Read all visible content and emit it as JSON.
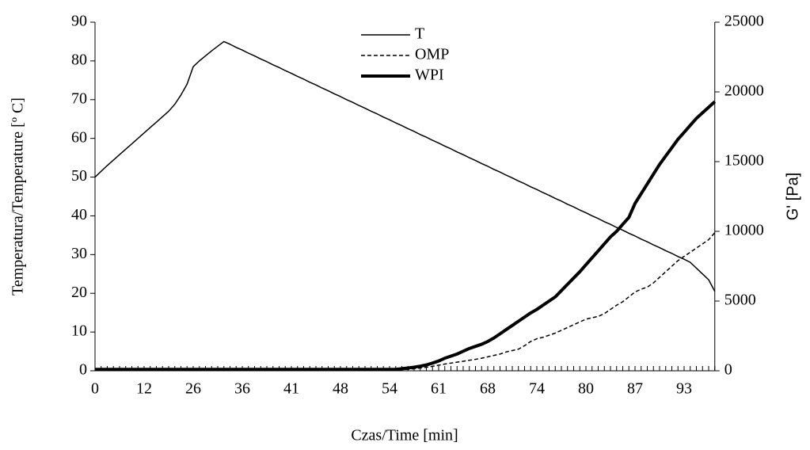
{
  "chart_data": {
    "type": "line",
    "x_label": "Czas/Time [min]",
    "y_label": "Temperatura/Temperature [º C]",
    "y2_label": "G' [Pa]",
    "categories": [
      "0",
      null,
      null,
      null,
      null,
      null,
      null,
      null,
      "12",
      null,
      null,
      null,
      null,
      null,
      null,
      null,
      "26",
      null,
      null,
      null,
      null,
      null,
      null,
      null,
      "36",
      null,
      null,
      null,
      null,
      null,
      null,
      null,
      "41",
      null,
      null,
      null,
      null,
      null,
      null,
      null,
      "48",
      null,
      null,
      null,
      null,
      null,
      null,
      null,
      "54",
      null,
      null,
      null,
      null,
      null,
      null,
      null,
      "61",
      null,
      null,
      null,
      null,
      null,
      null,
      null,
      "68",
      null,
      null,
      null,
      null,
      null,
      null,
      null,
      "74",
      null,
      null,
      null,
      null,
      null,
      null,
      null,
      "80",
      null,
      null,
      null,
      null,
      null,
      null,
      null,
      "87",
      null,
      null,
      null,
      null,
      null,
      null,
      null,
      "93",
      null,
      null,
      null,
      null,
      null
    ],
    "ylim": [
      0,
      90
    ],
    "yticks": [
      0,
      10,
      20,
      30,
      40,
      50,
      60,
      70,
      80,
      90
    ],
    "y2lim": [
      0,
      25000
    ],
    "y2ticks": [
      0,
      5000,
      10000,
      15000,
      20000,
      25000
    ],
    "legend": "top",
    "series": [
      {
        "name": "T",
        "color": "#000000",
        "width": 1.5,
        "dash": "solid",
        "values": [
          50,
          51.5,
          53,
          54.4,
          55.8,
          57.2,
          58.6,
          60,
          61.4,
          62.8,
          64.2,
          65.6,
          67,
          68.8,
          71.2,
          74,
          78.5,
          80,
          81.3,
          82.6,
          83.8,
          85,
          84.3,
          83.5,
          82.8,
          82.0,
          81.3,
          80.5,
          79.8,
          79.0,
          78.3,
          77.5,
          76.8,
          76.0,
          75.3,
          74.5,
          73.8,
          73.0,
          72.3,
          71.5,
          70.8,
          70.0,
          69.3,
          68.5,
          67.8,
          67.0,
          66.3,
          65.5,
          64.8,
          64.0,
          63.3,
          62.5,
          61.8,
          61.0,
          60.3,
          59.5,
          58.8,
          58.0,
          57.3,
          56.5,
          55.8,
          55.0,
          54.3,
          53.5,
          52.8,
          52.0,
          51.3,
          50.5,
          49.8,
          49.0,
          48.3,
          47.5,
          46.8,
          46.0,
          45.3,
          44.5,
          43.8,
          43.0,
          42.3,
          41.5,
          40.8,
          40.0,
          39.3,
          38.5,
          37.8,
          37.0,
          36.3,
          35.5,
          34.8,
          34.0,
          33.3,
          32.5,
          31.8,
          31.0,
          30.3,
          29.5,
          28.8,
          28.0,
          26.5,
          25.0,
          23.5,
          20.5
        ]
      },
      {
        "name": "OMP",
        "color": "#000000",
        "width": 1.5,
        "dash": "dashed",
        "axis": "y2",
        "values": [
          100,
          100,
          100,
          100,
          100,
          100,
          100,
          100,
          100,
          100,
          100,
          100,
          100,
          100,
          100,
          100,
          100,
          100,
          100,
          100,
          100,
          100,
          100,
          100,
          100,
          100,
          100,
          100,
          100,
          100,
          100,
          100,
          100,
          100,
          100,
          100,
          100,
          100,
          100,
          100,
          100,
          100,
          100,
          100,
          100,
          100,
          100,
          100,
          100,
          100,
          100,
          100,
          150,
          200,
          250,
          320,
          400,
          480,
          550,
          620,
          680,
          750,
          820,
          900,
          1000,
          1100,
          1200,
          1350,
          1450,
          1550,
          1800,
          2100,
          2300,
          2400,
          2550,
          2700,
          2900,
          3100,
          3300,
          3500,
          3700,
          3800,
          3900,
          4100,
          4400,
          4700,
          4950,
          5300,
          5650,
          5850,
          6000,
          6300,
          6700,
          7100,
          7500,
          7900,
          8200,
          8500,
          8800,
          9100,
          9400,
          9900
        ]
      },
      {
        "name": "WPI",
        "color": "#000000",
        "width": 4,
        "dash": "solid",
        "axis": "y2",
        "values": [
          100,
          100,
          100,
          100,
          100,
          100,
          100,
          100,
          100,
          100,
          100,
          100,
          100,
          100,
          100,
          100,
          100,
          100,
          100,
          100,
          100,
          100,
          100,
          100,
          100,
          100,
          100,
          100,
          100,
          100,
          100,
          100,
          100,
          100,
          100,
          100,
          100,
          100,
          100,
          100,
          100,
          100,
          100,
          100,
          100,
          100,
          100,
          100,
          100,
          100,
          150,
          200,
          260,
          330,
          420,
          550,
          700,
          900,
          1050,
          1200,
          1400,
          1600,
          1750,
          1900,
          2100,
          2350,
          2650,
          2950,
          3250,
          3550,
          3850,
          4150,
          4400,
          4700,
          5000,
          5300,
          5750,
          6200,
          6650,
          7100,
          7600,
          8100,
          8600,
          9100,
          9600,
          10000,
          10500,
          11000,
          12000,
          12700,
          13400,
          14100,
          14800,
          15400,
          16000,
          16600,
          17100,
          17600,
          18100,
          18500,
          18900,
          19300
        ]
      }
    ]
  }
}
